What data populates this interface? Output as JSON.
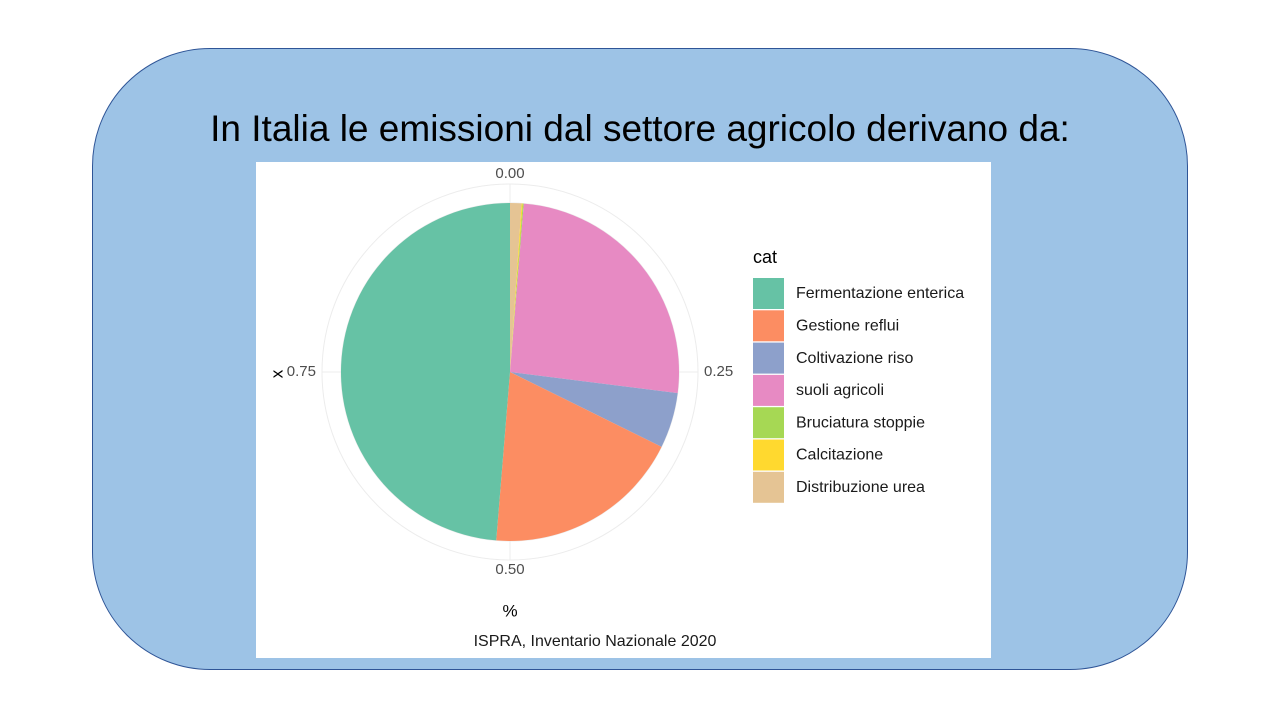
{
  "title": "In Italia le emissioni dal settore agricolo derivano da:",
  "chart_data": {
    "type": "pie",
    "categories": [
      "Fermentazione enterica",
      "Gestione reflui",
      "Coltivazione riso",
      "suoli agricoli",
      "Bruciatura stoppie",
      "Calcitazione",
      "Distribuzione urea"
    ],
    "values": [
      0.487,
      0.19,
      0.053,
      0.257,
      0.001,
      0.001,
      0.011
    ],
    "colors": [
      "#66c2a5",
      "#fc8d62",
      "#8da0cb",
      "#e78ac3",
      "#a6d854",
      "#ffd92f",
      "#e5c494"
    ],
    "start_from_top_clockwise_order": [
      6,
      5,
      4,
      3,
      2,
      1,
      0
    ],
    "radial_ticks": [
      "0.00",
      "0.25",
      "0.50",
      "0.75"
    ],
    "xlabel": "%",
    "ylabel": "x",
    "legend_title": "cat",
    "legend_position": "right",
    "caption": "ISPRA, Inventario Nazionale 2020"
  },
  "colors": {
    "box_fill": "#9dc3e6",
    "box_border": "#2f5597"
  }
}
